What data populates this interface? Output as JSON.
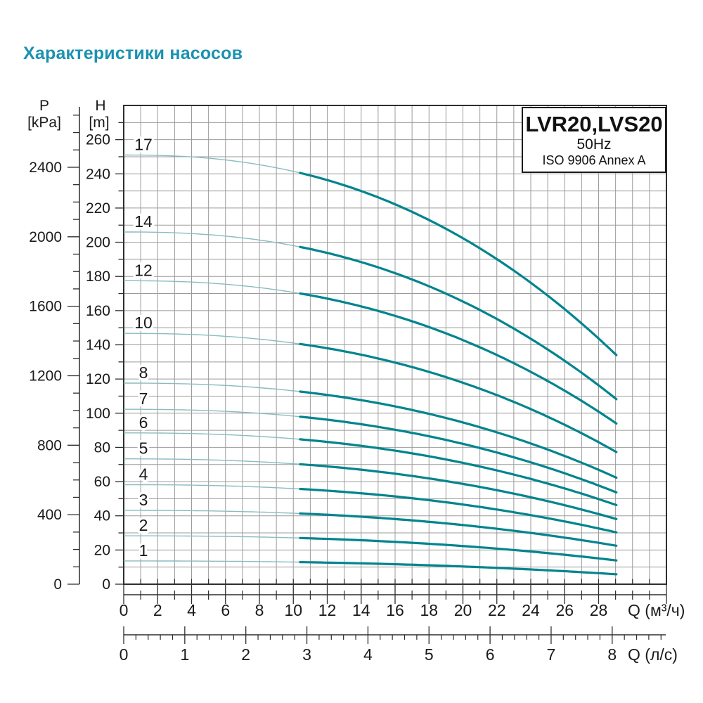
{
  "page_title": "Характеристики насосов",
  "info_box": {
    "model": "LVR20,LVS20",
    "frequency": "50Hz",
    "standard": "ISO 9906 Annex A"
  },
  "chart_data": {
    "type": "line",
    "title": "Характеристики насосов",
    "grid": true,
    "legend_position": "none",
    "y_axis_pressure": {
      "name": "P",
      "unit": "[kPa]",
      "ticks_labeled": [
        0,
        400,
        800,
        1200,
        1600,
        2000,
        2400
      ],
      "minor_step": 100,
      "range": [
        0,
        2750
      ]
    },
    "y_axis_head": {
      "name": "H",
      "unit": "[m]",
      "ticks_labeled": [
        0,
        20,
        40,
        60,
        80,
        100,
        120,
        140,
        160,
        180,
        200,
        220,
        240,
        260
      ],
      "minor_step": 10,
      "range": [
        0,
        280
      ]
    },
    "x_axis_primary": {
      "label": "Q (м³/ч)",
      "ticks_labeled": [
        0,
        2,
        4,
        6,
        8,
        10,
        12,
        14,
        16,
        18,
        20,
        22,
        24,
        26,
        28
      ],
      "minor_step": 1,
      "range": [
        0,
        32
      ]
    },
    "x_axis_secondary": {
      "label": "Q (л/с)",
      "ticks_labeled": [
        0,
        1,
        2,
        3,
        4,
        5,
        6,
        7,
        8
      ],
      "minor_step": 0.2,
      "range": [
        0,
        8.88
      ]
    },
    "q_start_m3h": 0,
    "q_end_m3h": 29.05,
    "thick_from_q_m3h": 10.4,
    "curve_shape_exponent": 2.35,
    "series": [
      {
        "label": "1",
        "stages": 1,
        "head_m_at_q0": 13.6,
        "head_m_at_qend": 5.8
      },
      {
        "label": "2",
        "stages": 2,
        "head_m_at_q0": 28.3,
        "head_m_at_qend": 13.9
      },
      {
        "label": "3",
        "stages": 3,
        "head_m_at_q0": 43.2,
        "head_m_at_qend": 22.5
      },
      {
        "label": "4",
        "stages": 4,
        "head_m_at_q0": 58.2,
        "head_m_at_qend": 30.3
      },
      {
        "label": "5",
        "stages": 5,
        "head_m_at_q0": 73.3,
        "head_m_at_qend": 38.1
      },
      {
        "label": "6",
        "stages": 6,
        "head_m_at_q0": 88.5,
        "head_m_at_qend": 46.3
      },
      {
        "label": "7",
        "stages": 7,
        "head_m_at_q0": 102.3,
        "head_m_at_qend": 53.7
      },
      {
        "label": "8",
        "stages": 8,
        "head_m_at_q0": 117.6,
        "head_m_at_qend": 62.3
      },
      {
        "label": "10",
        "stages": 10,
        "head_m_at_q0": 146.7,
        "head_m_at_qend": 77.3
      },
      {
        "label": "12",
        "stages": 12,
        "head_m_at_q0": 177.5,
        "head_m_at_qend": 94.0
      },
      {
        "label": "14",
        "stages": 14,
        "head_m_at_q0": 206.0,
        "head_m_at_qend": 108.2
      },
      {
        "label": "17",
        "stages": 17,
        "head_m_at_q0": 251.0,
        "head_m_at_qend": 134.0
      }
    ]
  },
  "colors": {
    "title": "#1b92b1",
    "curve_thick": "#00848e",
    "curve_thin": "#8abcc0",
    "grid": "#9b9b9b",
    "frame": "#2e2e2e",
    "text": "#1a1a1a"
  }
}
